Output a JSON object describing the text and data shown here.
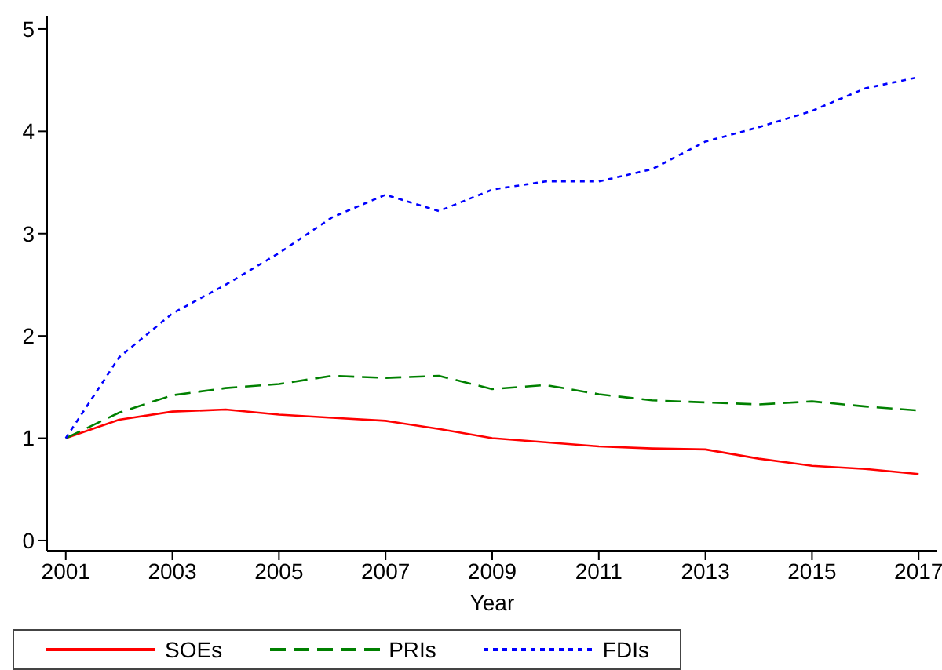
{
  "chart_data": {
    "type": "line",
    "xlabel": "Year",
    "x": [
      2001,
      2002,
      2003,
      2004,
      2005,
      2006,
      2007,
      2008,
      2009,
      2010,
      2011,
      2012,
      2013,
      2014,
      2015,
      2016,
      2017
    ],
    "series": [
      {
        "name": "SOEs",
        "color": "#ff0000",
        "line_style": "solid",
        "values": [
          1.0,
          1.18,
          1.26,
          1.28,
          1.23,
          1.2,
          1.17,
          1.09,
          1.0,
          0.96,
          0.92,
          0.9,
          0.89,
          0.8,
          0.73,
          0.7,
          0.65
        ]
      },
      {
        "name": "PRIs",
        "color": "#008000",
        "line_style": "dashed",
        "values": [
          1.0,
          1.25,
          1.42,
          1.49,
          1.53,
          1.61,
          1.59,
          1.61,
          1.48,
          1.52,
          1.43,
          1.37,
          1.35,
          1.33,
          1.36,
          1.31,
          1.27
        ]
      },
      {
        "name": "FDIs",
        "color": "#0000ff",
        "line_style": "dotted",
        "values": [
          1.0,
          1.79,
          2.22,
          2.5,
          2.81,
          3.16,
          3.38,
          3.22,
          3.43,
          3.51,
          3.51,
          3.63,
          3.9,
          4.04,
          4.2,
          4.42,
          4.53
        ]
      }
    ],
    "xlim": [
      2000.65,
      2017.35
    ],
    "xticks": [
      2001,
      2003,
      2005,
      2007,
      2009,
      2011,
      2013,
      2015,
      2017
    ],
    "ylim": [
      -0.1,
      5.13
    ],
    "yticks": [
      0,
      1,
      2,
      3,
      4,
      5
    ],
    "grid": false,
    "legend": "bottom",
    "marker": "none"
  }
}
